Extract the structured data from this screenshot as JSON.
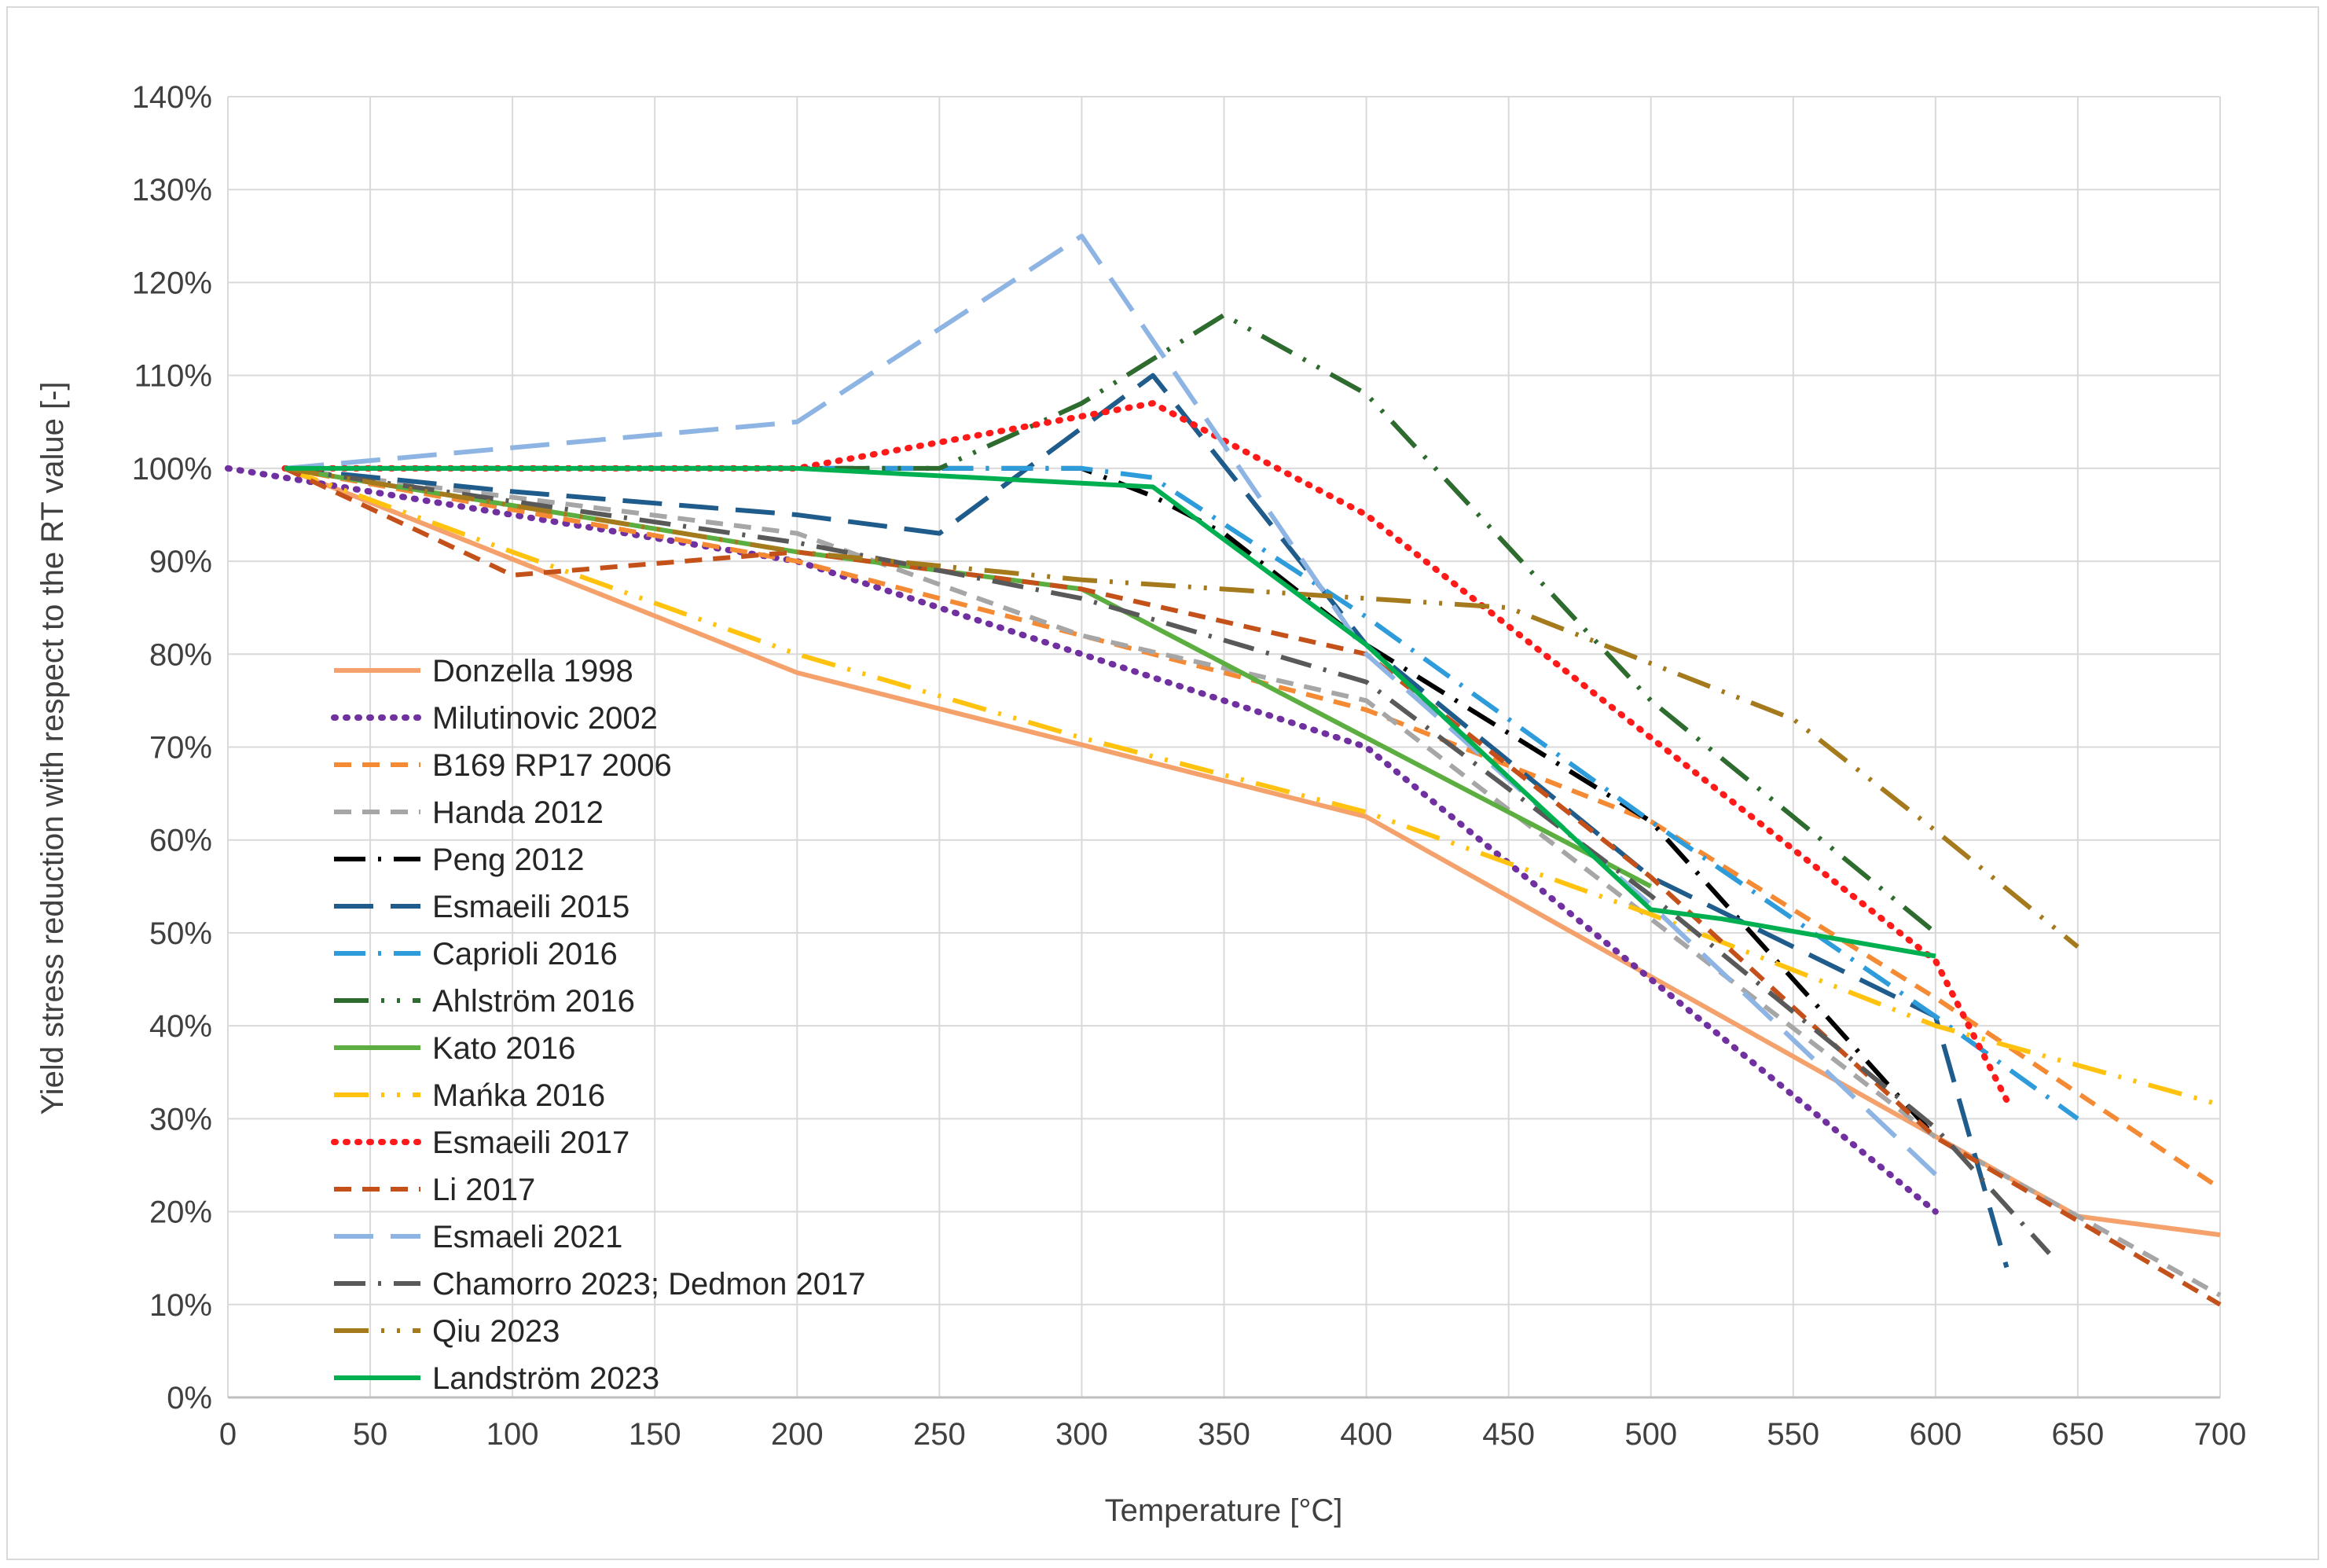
{
  "chart_data": {
    "type": "line",
    "title": "",
    "xlabel": "Temperature [°C]",
    "ylabel": "Yield stress reduction with respect to the RT value [-]",
    "xlim": [
      0,
      700
    ],
    "ylim": [
      0,
      140
    ],
    "x_ticks": [
      0,
      50,
      100,
      150,
      200,
      250,
      300,
      350,
      400,
      450,
      500,
      550,
      600,
      650,
      700
    ],
    "x_tick_labels": [
      "0",
      "50",
      "100",
      "150",
      "200",
      "250",
      "300",
      "350",
      "400",
      "450",
      "500",
      "550",
      "600",
      "650",
      "700"
    ],
    "y_ticks": [
      0,
      10,
      20,
      30,
      40,
      50,
      60,
      70,
      80,
      90,
      100,
      110,
      120,
      130,
      140
    ],
    "y_tick_labels": [
      "0%",
      "10%",
      "20%",
      "30%",
      "40%",
      "50%",
      "60%",
      "70%",
      "80%",
      "90%",
      "100%",
      "110%",
      "120%",
      "130%",
      "140%"
    ],
    "grid": true,
    "legend_position": "bottom-left",
    "series": [
      {
        "name": "Donzella 1998",
        "color": "#F4A16B",
        "dash": "solid",
        "points": [
          [
            20,
            100
          ],
          [
            200,
            78
          ],
          [
            400,
            62.5
          ],
          [
            650,
            19.5
          ],
          [
            700,
            17.5
          ]
        ]
      },
      {
        "name": "Milutinovic 2002",
        "color": "#7030A0",
        "dash": "dot",
        "points": [
          [
            0,
            100
          ],
          [
            200,
            90
          ],
          [
            300,
            80
          ],
          [
            400,
            70
          ],
          [
            500,
            45
          ],
          [
            600,
            20
          ]
        ]
      },
      {
        "name": "B169 RP17 2006",
        "color": "#F58A35",
        "dash": "dash",
        "points": [
          [
            20,
            100
          ],
          [
            200,
            90
          ],
          [
            300,
            82
          ],
          [
            400,
            74
          ],
          [
            500,
            62
          ],
          [
            600,
            43
          ],
          [
            700,
            22.5
          ]
        ]
      },
      {
        "name": "Handa 2012",
        "color": "#A6A6A6",
        "dash": "dash",
        "points": [
          [
            20,
            100
          ],
          [
            200,
            93
          ],
          [
            300,
            82
          ],
          [
            400,
            75
          ],
          [
            600,
            28
          ],
          [
            700,
            11
          ]
        ]
      },
      {
        "name": "Peng 2012",
        "color": "#000000",
        "dash": "dashdot",
        "points": [
          [
            20,
            100
          ],
          [
            300,
            100
          ],
          [
            325,
            97
          ],
          [
            350,
            93
          ],
          [
            400,
            81
          ],
          [
            500,
            62
          ],
          [
            600,
            28
          ]
        ]
      },
      {
        "name": "Esmaeili 2015",
        "color": "#1F5C8B",
        "dash": "longdash",
        "points": [
          [
            20,
            100
          ],
          [
            100,
            97.5
          ],
          [
            200,
            95
          ],
          [
            250,
            93
          ],
          [
            325,
            110
          ],
          [
            400,
            81
          ],
          [
            500,
            56
          ],
          [
            600,
            41
          ],
          [
            625,
            14
          ]
        ]
      },
      {
        "name": "Caprioli 2016",
        "color": "#2E9CDB",
        "dash": "dashdot",
        "points": [
          [
            20,
            100
          ],
          [
            300,
            100
          ],
          [
            325,
            99
          ],
          [
            400,
            84
          ],
          [
            500,
            62
          ],
          [
            600,
            41
          ],
          [
            650,
            30
          ]
        ]
      },
      {
        "name": "Ahlström 2016",
        "color": "#2E6B2E",
        "dash": "dashdotdot",
        "points": [
          [
            20,
            100
          ],
          [
            250,
            100
          ],
          [
            300,
            107
          ],
          [
            350,
            116.5
          ],
          [
            400,
            108
          ],
          [
            500,
            75
          ],
          [
            600,
            50
          ]
        ]
      },
      {
        "name": "Kato 2016",
        "color": "#5BAE3F",
        "dash": "solid",
        "points": [
          [
            20,
            100
          ],
          [
            100,
            96
          ],
          [
            200,
            91
          ],
          [
            300,
            87
          ],
          [
            400,
            71
          ],
          [
            500,
            55
          ]
        ]
      },
      {
        "name": "Mańka 2016",
        "color": "#FFC20E",
        "dash": "dashdotdot",
        "points": [
          [
            20,
            100
          ],
          [
            100,
            91
          ],
          [
            200,
            80
          ],
          [
            300,
            71
          ],
          [
            400,
            63
          ],
          [
            500,
            52
          ],
          [
            600,
            40
          ],
          [
            700,
            31.5
          ]
        ]
      },
      {
        "name": "Esmaeili 2017",
        "color": "#FF1A1A",
        "dash": "dot",
        "points": [
          [
            20,
            100
          ],
          [
            200,
            100
          ],
          [
            325,
            107
          ],
          [
            400,
            95
          ],
          [
            500,
            71
          ],
          [
            600,
            47
          ],
          [
            625,
            32
          ]
        ]
      },
      {
        "name": "Li 2017",
        "color": "#C4511A",
        "dash": "dash",
        "points": [
          [
            20,
            100
          ],
          [
            100,
            88.5
          ],
          [
            200,
            91
          ],
          [
            300,
            87
          ],
          [
            400,
            80
          ],
          [
            500,
            56
          ],
          [
            600,
            28
          ],
          [
            700,
            10
          ]
        ]
      },
      {
        "name": "Esmaeli 2021",
        "color": "#8DB4E2",
        "dash": "longdash",
        "points": [
          [
            20,
            100
          ],
          [
            200,
            105
          ],
          [
            300,
            125
          ],
          [
            400,
            80
          ],
          [
            500,
            53
          ],
          [
            600,
            24
          ]
        ]
      },
      {
        "name": "Chamorro 2023; Dedmon 2017",
        "color": "#595959",
        "dash": "dashdot",
        "points": [
          [
            20,
            100
          ],
          [
            200,
            92
          ],
          [
            300,
            86
          ],
          [
            400,
            77
          ],
          [
            500,
            54
          ],
          [
            600,
            29
          ],
          [
            640,
            15.5
          ]
        ]
      },
      {
        "name": "Qiu 2023",
        "color": "#A57A1C",
        "dash": "dashdotdot",
        "points": [
          [
            20,
            100
          ],
          [
            200,
            91
          ],
          [
            300,
            88
          ],
          [
            400,
            86
          ],
          [
            450,
            85
          ],
          [
            500,
            79
          ],
          [
            550,
            73
          ],
          [
            600,
            61
          ],
          [
            650,
            48.5
          ]
        ]
      },
      {
        "name": "Landström 2023",
        "color": "#00B050",
        "dash": "solid",
        "points": [
          [
            20,
            100
          ],
          [
            200,
            100
          ],
          [
            325,
            98
          ],
          [
            400,
            81
          ],
          [
            500,
            52.5
          ],
          [
            525,
            51.5
          ],
          [
            600,
            47.5
          ]
        ]
      }
    ]
  }
}
